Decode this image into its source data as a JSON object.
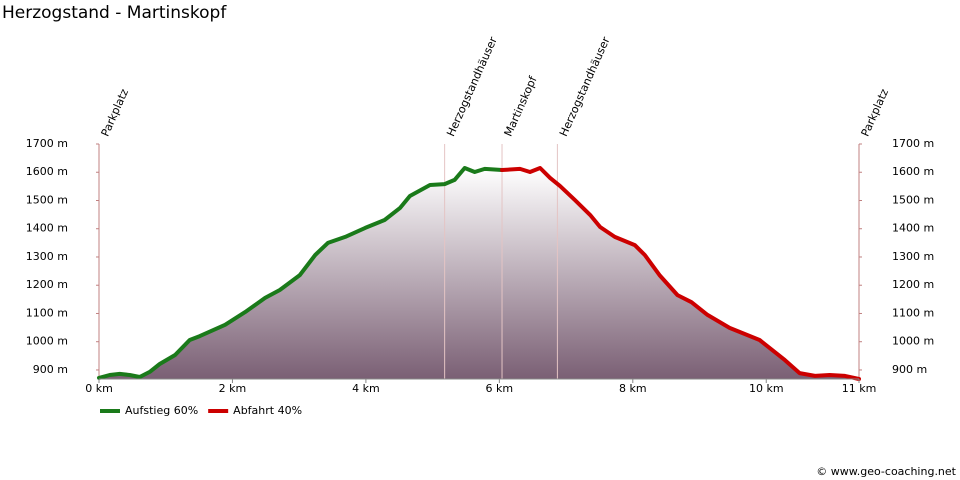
{
  "chart_data": {
    "type": "line",
    "title": "Herzogstand - Martinskopf",
    "credit": "© www.geo-coaching.net",
    "xlim": [
      0,
      11.39
    ],
    "ylim": [
      868,
      1700
    ],
    "xticks": [
      {
        "value": 0,
        "label": "0 km"
      },
      {
        "value": 2,
        "label": "2 km"
      },
      {
        "value": 4,
        "label": "4 km"
      },
      {
        "value": 6,
        "label": "6 km"
      },
      {
        "value": 8,
        "label": "8 km"
      },
      {
        "value": 10,
        "label": "10 km"
      },
      {
        "value": 11.39,
        "label": "11 km"
      }
    ],
    "yticks": [
      {
        "value": 900,
        "label": "900 m"
      },
      {
        "value": 1000,
        "label": "1000 m"
      },
      {
        "value": 1100,
        "label": "1100 m"
      },
      {
        "value": 1200,
        "label": "1200 m"
      },
      {
        "value": 1300,
        "label": "1300 m"
      },
      {
        "value": 1400,
        "label": "1400 m"
      },
      {
        "value": 1500,
        "label": "1500 m"
      },
      {
        "value": 1600,
        "label": "1600 m"
      },
      {
        "value": 1700,
        "label": "1700 m"
      }
    ],
    "waypoints": [
      {
        "name": "Parkplatz",
        "x": 0
      },
      {
        "name": "Herzogstandhäuser",
        "x": 5.18
      },
      {
        "name": "Martinskopf",
        "x": 6.04
      },
      {
        "name": "Herzogstandhäuser",
        "x": 6.87
      },
      {
        "name": "Parkplatz",
        "x": 11.39
      }
    ],
    "series": [
      {
        "name": "Aufstieg 60%",
        "color": "#1a7a1a",
        "x": [
          0,
          0.16,
          0.31,
          0.46,
          0.61,
          0.76,
          0.91,
          1.14,
          1.36,
          1.51,
          1.89,
          2.19,
          2.49,
          2.71,
          3.01,
          3.24,
          3.43,
          3.69,
          3.99,
          4.28,
          4.51,
          4.66,
          4.96,
          5.18,
          5.33,
          5.48,
          5.63,
          5.78,
          6.04
        ],
        "values": [
          872,
          882,
          886,
          882,
          875,
          893,
          921,
          953,
          1006,
          1020,
          1060,
          1105,
          1155,
          1183,
          1236,
          1307,
          1350,
          1371,
          1403,
          1431,
          1473,
          1516,
          1555,
          1558,
          1573,
          1615,
          1601,
          1612,
          1608
        ]
      },
      {
        "name": "Abfahrt 40%",
        "color": "#cc0000",
        "x": [
          6.04,
          6.31,
          6.46,
          6.61,
          6.76,
          6.91,
          7.13,
          7.36,
          7.51,
          7.73,
          8.03,
          8.18,
          8.4,
          8.67,
          8.88,
          9.12,
          9.45,
          9.9,
          10.05,
          10.28,
          10.5,
          10.73,
          10.95,
          11.18,
          11.39
        ],
        "values": [
          1608,
          1612,
          1601,
          1615,
          1580,
          1551,
          1502,
          1449,
          1406,
          1371,
          1342,
          1307,
          1236,
          1165,
          1140,
          1095,
          1049,
          1006,
          978,
          935,
          889,
          879,
          882,
          879,
          868
        ]
      }
    ]
  }
}
